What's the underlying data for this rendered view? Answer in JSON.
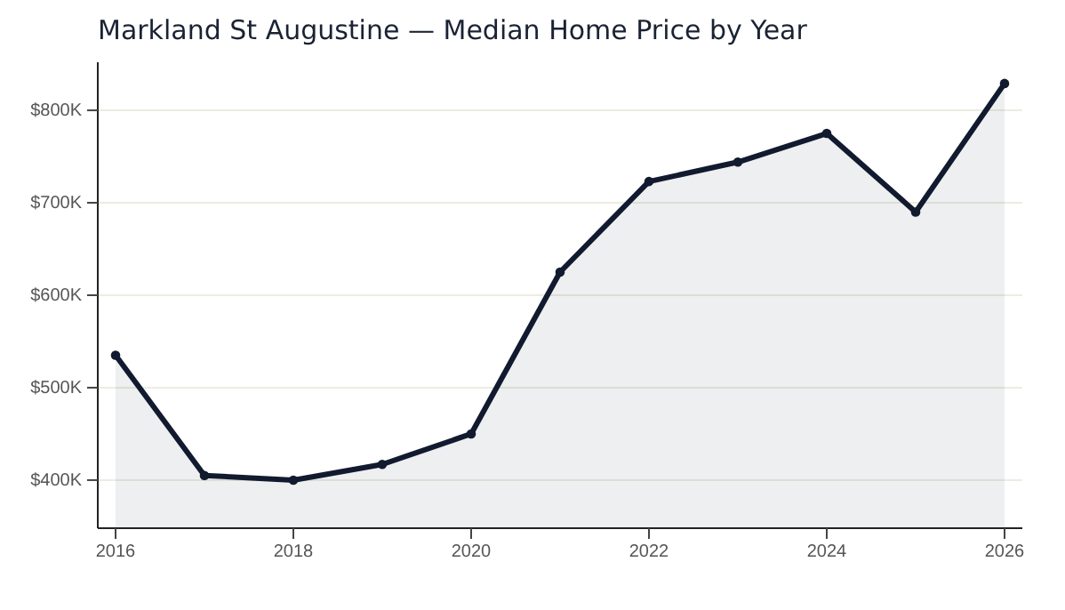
{
  "chart_data": {
    "type": "area",
    "title": "Markland St Augustine — Median Home Price by Year",
    "x": [
      2016,
      2017,
      2018,
      2019,
      2020,
      2021,
      2022,
      2023,
      2024,
      2025,
      2026
    ],
    "series": [
      {
        "color": "#111a2e",
        "values": [
          535,
          405,
          400,
          417,
          450,
          625,
          723,
          744,
          775,
          690,
          829
        ]
      }
    ],
    "xlim": [
      2015.8,
      2026.2
    ],
    "xticks": [
      2016,
      2018,
      2020,
      2022,
      2024,
      2026
    ],
    "ylim": [
      348,
      852
    ],
    "yticks": [
      {
        "value": 400,
        "label": "$400K"
      },
      {
        "value": 500,
        "label": "$500K"
      },
      {
        "value": 600,
        "label": "$600K"
      },
      {
        "value": 700,
        "label": "$700K"
      },
      {
        "value": 800,
        "label": "$800K"
      }
    ],
    "grid": "y",
    "marker": "circle",
    "line_style": "solid"
  }
}
